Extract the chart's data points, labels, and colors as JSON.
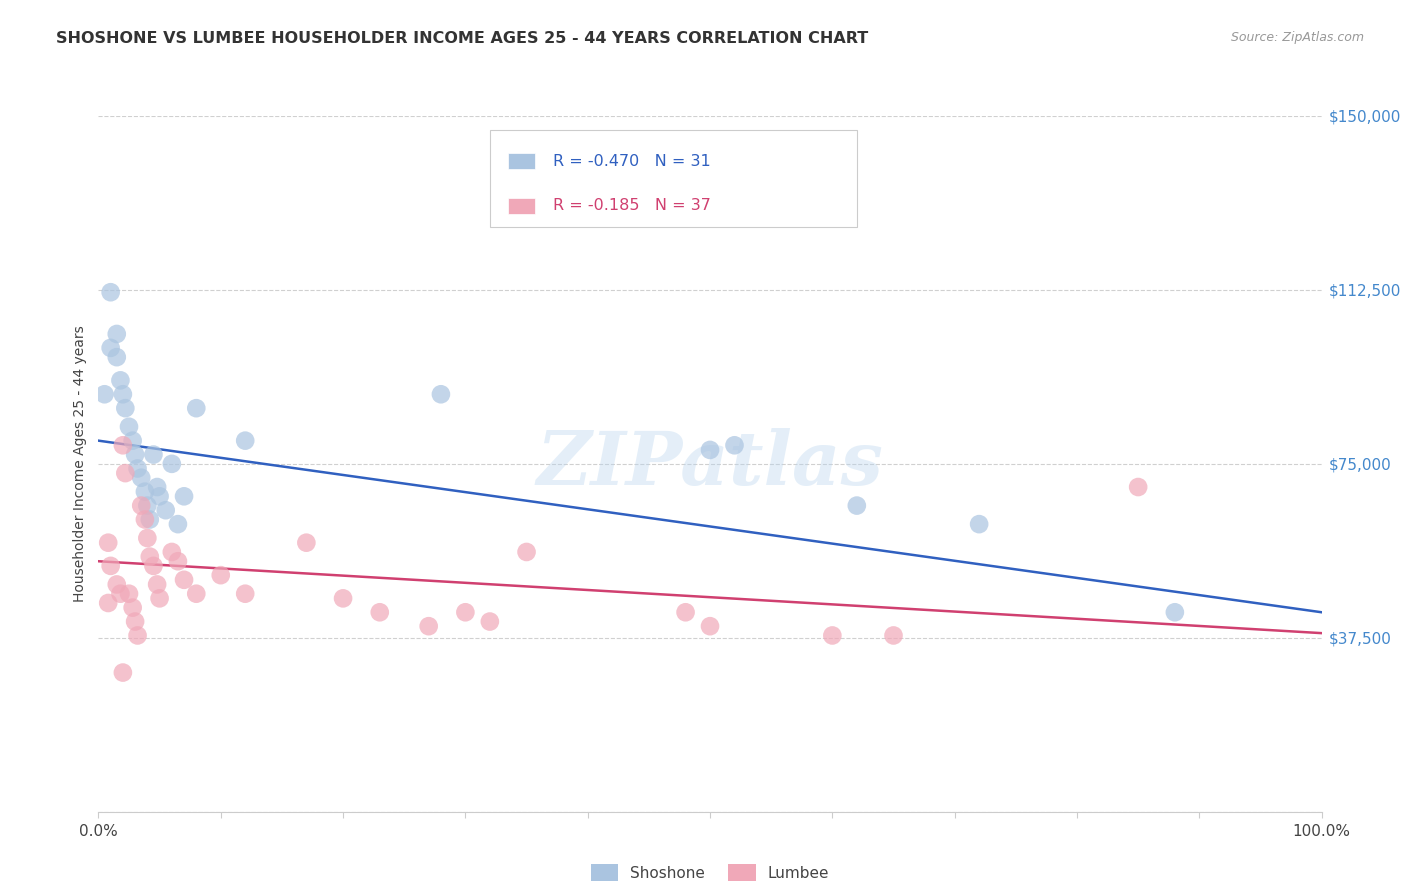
{
  "title": "SHOSHONE VS LUMBEE HOUSEHOLDER INCOME AGES 25 - 44 YEARS CORRELATION CHART",
  "source": "Source: ZipAtlas.com",
  "ylabel": "Householder Income Ages 25 - 44 years",
  "xlim": [
    0,
    1.0
  ],
  "ylim": [
    0,
    150000
  ],
  "yticks": [
    0,
    37500,
    75000,
    112500,
    150000
  ],
  "ytick_labels": [
    "",
    "$37,500",
    "$75,000",
    "$112,500",
    "$150,000"
  ],
  "background_color": "#ffffff",
  "grid_color": "#d0d0d0",
  "watermark": "ZIPatlas",
  "legend_r1": "-0.470",
  "legend_n1": "31",
  "legend_r2": "-0.185",
  "legend_n2": "37",
  "shoshone_color": "#aac4e0",
  "lumbee_color": "#f0a8b8",
  "shoshone_line_color": "#3060c0",
  "lumbee_line_color": "#d04070",
  "ytick_color": "#4488cc",
  "shoshone_x": [
    0.01,
    0.01,
    0.015,
    0.018,
    0.02,
    0.022,
    0.025,
    0.028,
    0.03,
    0.032,
    0.035,
    0.038,
    0.04,
    0.042,
    0.045,
    0.048,
    0.05,
    0.055,
    0.06,
    0.065,
    0.07,
    0.08,
    0.12,
    0.28,
    0.5,
    0.52,
    0.62,
    0.72,
    0.88,
    0.005,
    0.015
  ],
  "shoshone_y": [
    112000,
    100000,
    98000,
    93000,
    90000,
    87000,
    83000,
    80000,
    77000,
    74000,
    72000,
    69000,
    66000,
    63000,
    77000,
    70000,
    68000,
    65000,
    75000,
    62000,
    68000,
    87000,
    80000,
    90000,
    78000,
    79000,
    66000,
    62000,
    43000,
    90000,
    103000
  ],
  "lumbee_x": [
    0.008,
    0.01,
    0.015,
    0.018,
    0.02,
    0.022,
    0.025,
    0.028,
    0.03,
    0.032,
    0.035,
    0.038,
    0.04,
    0.042,
    0.045,
    0.048,
    0.05,
    0.06,
    0.065,
    0.07,
    0.08,
    0.1,
    0.12,
    0.17,
    0.2,
    0.23,
    0.27,
    0.3,
    0.32,
    0.35,
    0.48,
    0.5,
    0.6,
    0.65,
    0.85,
    0.008,
    0.02
  ],
  "lumbee_y": [
    58000,
    53000,
    49000,
    47000,
    79000,
    73000,
    47000,
    44000,
    41000,
    38000,
    66000,
    63000,
    59000,
    55000,
    53000,
    49000,
    46000,
    56000,
    54000,
    50000,
    47000,
    51000,
    47000,
    58000,
    46000,
    43000,
    40000,
    43000,
    41000,
    56000,
    43000,
    40000,
    38000,
    38000,
    70000,
    45000,
    30000
  ],
  "shoshone_trendline_x": [
    0.0,
    1.0
  ],
  "shoshone_trendline_y": [
    80000,
    43000
  ],
  "lumbee_trendline_x": [
    0.0,
    1.0
  ],
  "lumbee_trendline_y": [
    54000,
    38500
  ]
}
